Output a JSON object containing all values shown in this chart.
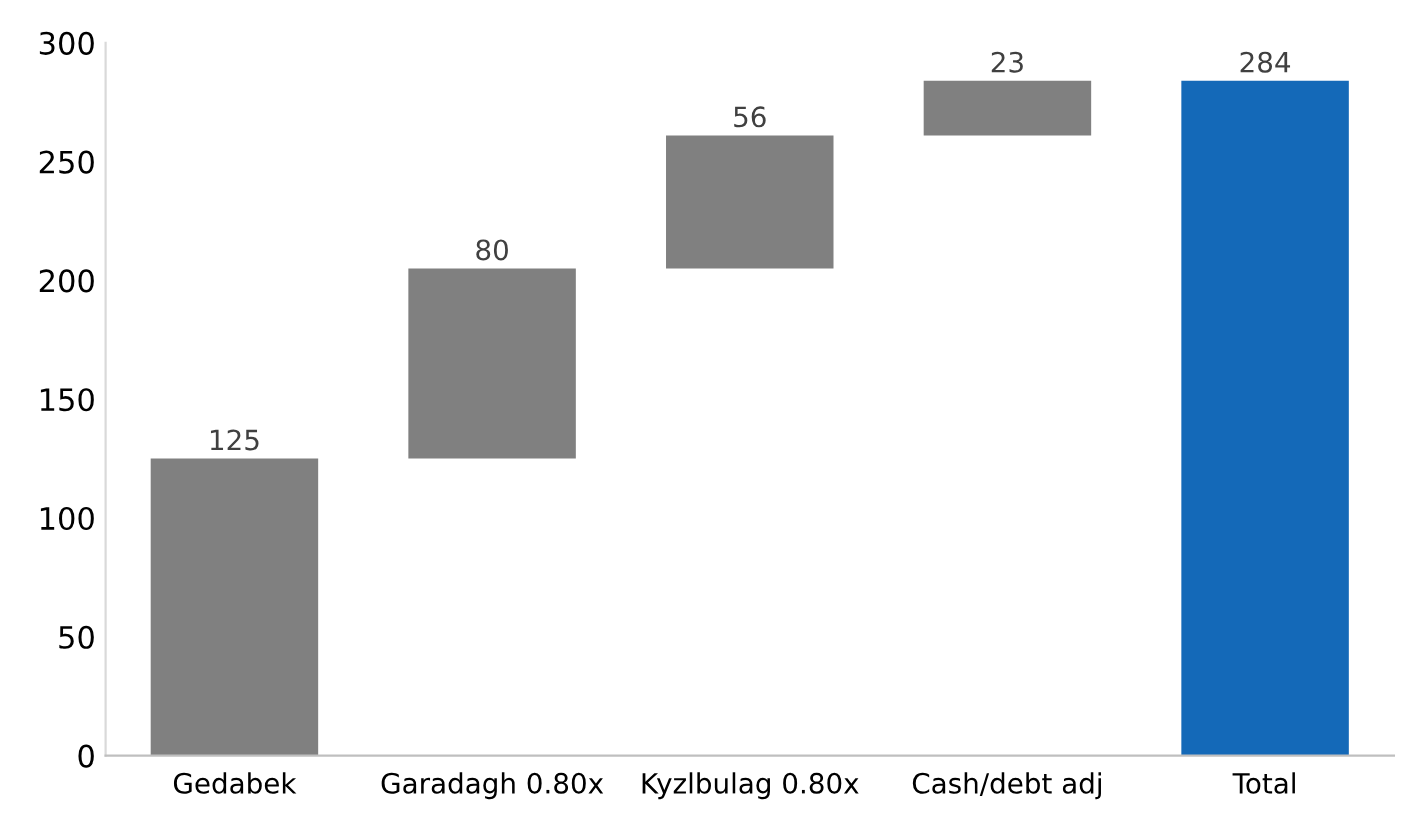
{
  "chart_data": {
    "type": "bar",
    "categories": [
      "Gedabek",
      "Garadagh 0.80x",
      "Kyzlbulag 0.80x",
      "Cash/debt adj",
      "Total"
    ],
    "values": [
      125,
      80,
      56,
      23,
      284
    ],
    "base": [
      0,
      125,
      205,
      261,
      0
    ],
    "colors": [
      "#808080",
      "#808080",
      "#808080",
      "#808080",
      "#1469b8"
    ],
    "ylim": [
      0,
      300
    ],
    "yticks": [
      0,
      50,
      100,
      150,
      200,
      250,
      300
    ],
    "data_labels": true,
    "grid": false
  }
}
